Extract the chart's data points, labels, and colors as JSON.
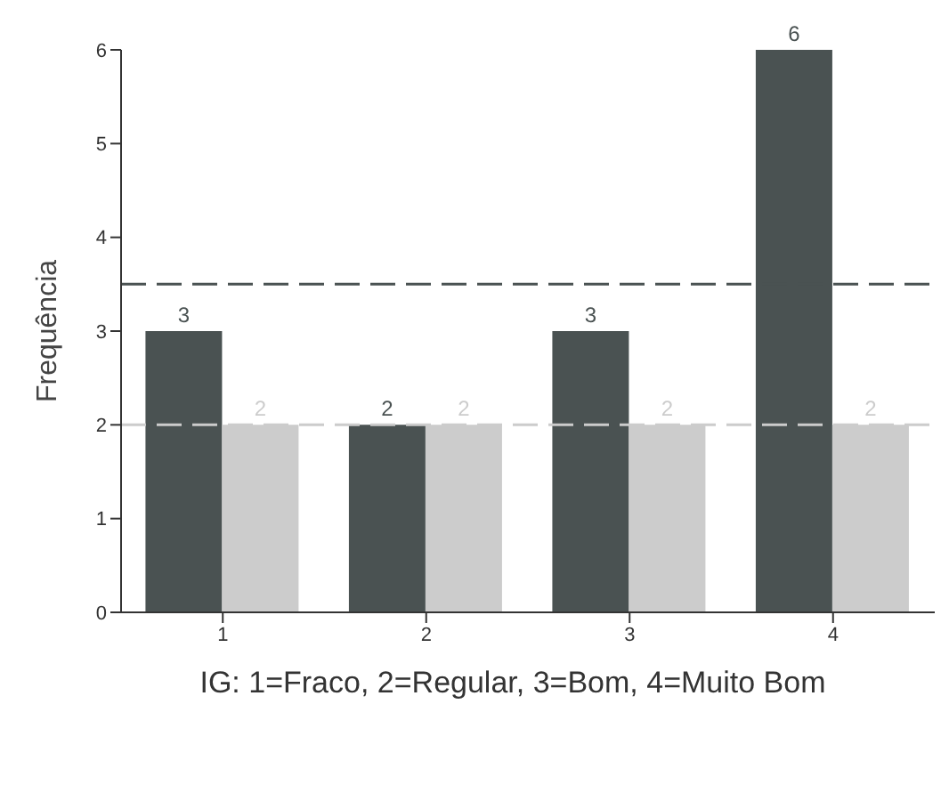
{
  "chart_data": {
    "type": "bar",
    "xlabel": "IG: 1=Fraco, 2=Regular, 3=Bom, 4=Muito Bom",
    "ylabel": "Frequência",
    "categories": [
      "1",
      "2",
      "3",
      "4"
    ],
    "series": [
      {
        "color": "#4a5252",
        "values": [
          3,
          2,
          3,
          6
        ]
      },
      {
        "color": "#cccccc",
        "values": [
          2,
          2,
          2,
          2
        ]
      }
    ],
    "ylim": [
      0,
      6
    ],
    "yticks": [
      0,
      1,
      2,
      3,
      4,
      5,
      6
    ],
    "data_labels": true,
    "grid": false,
    "legend": false,
    "ref_lines": [
      {
        "axis": "y",
        "value": 3.5,
        "color": "#4a5252",
        "line_style": "dashed"
      },
      {
        "axis": "y",
        "value": 2,
        "color": "#cccccc",
        "line_style": "dashed"
      }
    ]
  }
}
